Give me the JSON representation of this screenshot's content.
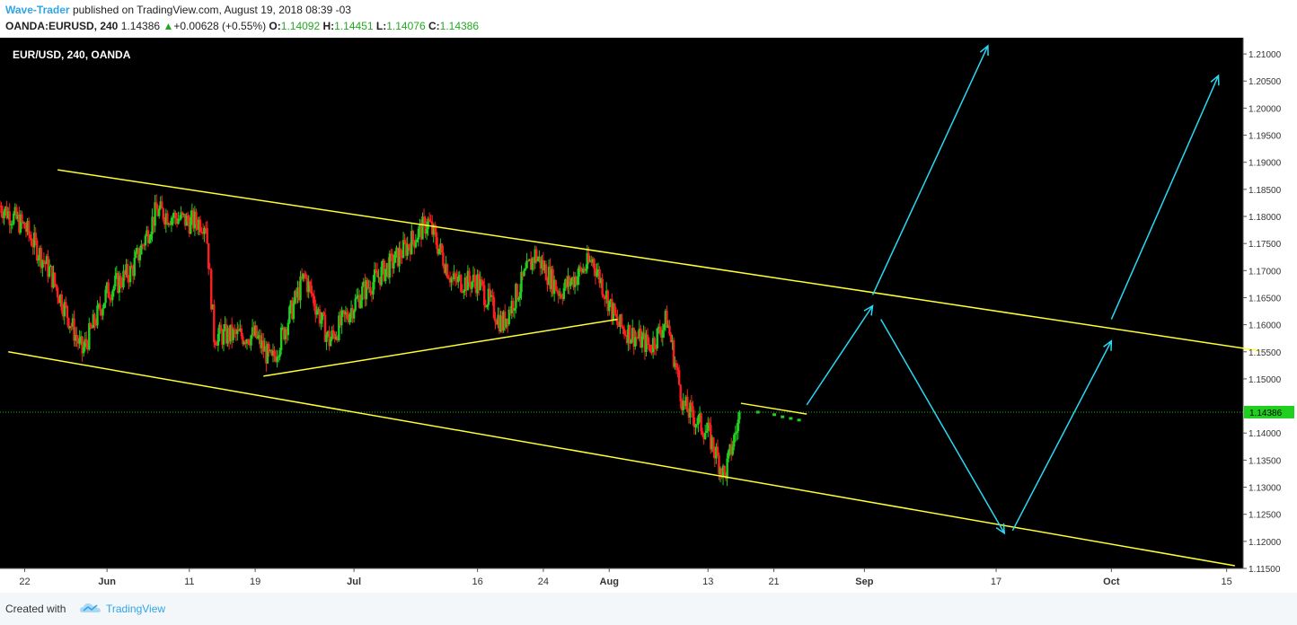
{
  "header": {
    "author": "Wave-Trader",
    "published": "published on TradingView.com, August 19, 2018 08:39 -03",
    "symbol": "OANDA:EURUSD, 240",
    "last": "1.14386",
    "change": "+0.00628 (+0.55%)",
    "o_label": "O:",
    "o_value": "1.14092",
    "h_label": "H:",
    "h_value": "1.14451",
    "l_label": "L:",
    "l_value": "1.14076",
    "c_label": "C:",
    "c_value": "1.14386"
  },
  "footer": {
    "created_with": "Created with",
    "brand": "TradingView"
  },
  "colors": {
    "up": "#1fd01f",
    "down": "#ff1f1f",
    "trendline": "#ffff33",
    "projection": "#29d9f5",
    "price_line": "#18b418",
    "background": "#000000"
  },
  "chart_data": {
    "type": "candlestick",
    "title": "EUR/USD, 240, OANDA",
    "x_range": [
      "2018-05-19",
      "2018-10-17"
    ],
    "y_range": [
      1.115,
      1.213
    ],
    "x_ticks": [
      {
        "label": "22",
        "date": "2018-05-22"
      },
      {
        "label": "Jun",
        "date": "2018-06-01"
      },
      {
        "label": "11",
        "date": "2018-06-11"
      },
      {
        "label": "19",
        "date": "2018-06-19"
      },
      {
        "label": "Jul",
        "date": "2018-07-01"
      },
      {
        "label": "16",
        "date": "2018-07-16"
      },
      {
        "label": "24",
        "date": "2018-07-24"
      },
      {
        "label": "Aug",
        "date": "2018-08-01"
      },
      {
        "label": "13",
        "date": "2018-08-13"
      },
      {
        "label": "21",
        "date": "2018-08-21"
      },
      {
        "label": "Sep",
        "date": "2018-09-01"
      },
      {
        "label": "17",
        "date": "2018-09-17"
      },
      {
        "label": "Oct",
        "date": "2018-10-01"
      },
      {
        "label": "15",
        "date": "2018-10-15"
      }
    ],
    "y_ticks": [
      "1.21000",
      "1.20500",
      "1.20000",
      "1.19500",
      "1.19000",
      "1.18500",
      "1.18000",
      "1.17500",
      "1.17000",
      "1.16500",
      "1.16000",
      "1.15500",
      "1.15000",
      "1.14000",
      "1.13500",
      "1.13000",
      "1.12500",
      "1.12000",
      "1.11500"
    ],
    "last_price": "1.14386",
    "price_path": [
      [
        "2018-05-19",
        1.182
      ],
      [
        "2018-05-22",
        1.178
      ],
      [
        "2018-05-25",
        1.17
      ],
      [
        "2018-05-29",
        1.155
      ],
      [
        "2018-06-01",
        1.166
      ],
      [
        "2018-06-04",
        1.17
      ],
      [
        "2018-06-07",
        1.181
      ],
      [
        "2018-06-11",
        1.179
      ],
      [
        "2018-06-13",
        1.179
      ],
      [
        "2018-06-14",
        1.158
      ],
      [
        "2018-06-19",
        1.158
      ],
      [
        "2018-06-21",
        1.153
      ],
      [
        "2018-06-25",
        1.169
      ],
      [
        "2018-06-28",
        1.157
      ],
      [
        "2018-07-02",
        1.166
      ],
      [
        "2018-07-06",
        1.172
      ],
      [
        "2018-07-10",
        1.179
      ],
      [
        "2018-07-13",
        1.168
      ],
      [
        "2018-07-16",
        1.168
      ],
      [
        "2018-07-19",
        1.16
      ],
      [
        "2018-07-23",
        1.173
      ],
      [
        "2018-07-26",
        1.166
      ],
      [
        "2018-07-30",
        1.172
      ],
      [
        "2018-08-02",
        1.16
      ],
      [
        "2018-08-06",
        1.156
      ],
      [
        "2018-08-08",
        1.161
      ],
      [
        "2018-08-10",
        1.145
      ],
      [
        "2018-08-13",
        1.14
      ],
      [
        "2018-08-15",
        1.132
      ],
      [
        "2018-08-17",
        1.144
      ]
    ],
    "recent_green_ticks": [
      [
        "2018-08-19",
        1.14386
      ],
      [
        "2018-08-21",
        1.1434
      ],
      [
        "2018-08-22",
        1.143
      ],
      [
        "2018-08-23",
        1.1427
      ],
      [
        "2018-08-24",
        1.1424
      ]
    ],
    "trendlines": [
      {
        "name": "channel-upper",
        "from": [
          "2018-05-26",
          1.1886
        ],
        "to": [
          "2018-10-19",
          1.1552
        ]
      },
      {
        "name": "channel-lower",
        "from": [
          "2018-05-20",
          1.155
        ],
        "to": [
          "2018-10-16",
          1.1155
        ]
      },
      {
        "name": "inner-support",
        "from": [
          "2018-06-20",
          1.1505
        ],
        "to": [
          "2018-08-02",
          1.161
        ]
      },
      {
        "name": "small-wedge",
        "from": [
          "2018-08-17",
          1.1455
        ],
        "to": [
          "2018-08-25",
          1.1435
        ]
      }
    ],
    "projections": [
      {
        "from": [
          "2018-08-25",
          1.1452
        ],
        "to": [
          "2018-09-02",
          1.1635
        ]
      },
      {
        "from": [
          "2018-09-02",
          1.1655
        ],
        "to": [
          "2018-09-16",
          1.2115
        ]
      },
      {
        "from": [
          "2018-09-03",
          1.161
        ],
        "to": [
          "2018-09-18",
          1.1215
        ]
      },
      {
        "from": [
          "2018-09-19",
          1.122
        ],
        "to": [
          "2018-10-01",
          1.157
        ]
      },
      {
        "from": [
          "2018-10-01",
          1.161
        ],
        "to": [
          "2018-10-14",
          1.206
        ]
      }
    ]
  }
}
